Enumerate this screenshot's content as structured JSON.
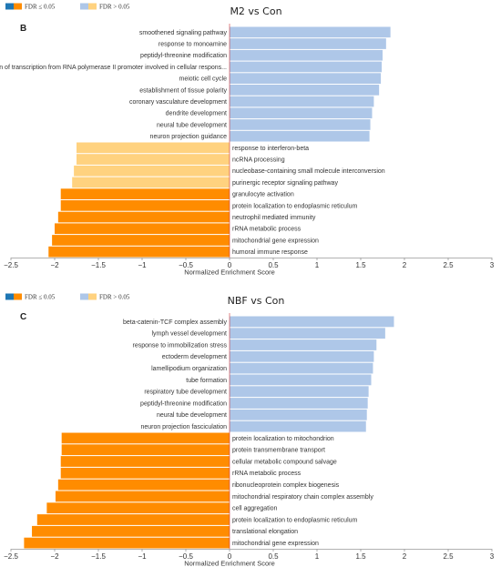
{
  "chart_data": [
    {
      "type": "bar",
      "orientation": "horizontal",
      "panel_letter": "B",
      "title": "M2 vs Con",
      "xlabel": "Normalized Enrichment Score",
      "xlim": [
        -2.5,
        3
      ],
      "xticks": [
        "−2.5",
        "−2",
        "−1.5",
        "−1",
        "−0.5",
        "0",
        "0.5",
        "1",
        "1.5",
        "2",
        "2.5",
        "3"
      ],
      "legend": [
        {
          "label": "FDR ≤ 0.05",
          "colors": [
            "#1f77b4",
            "#ff8c00"
          ]
        },
        {
          "label": "FDR > 0.05",
          "colors": [
            "#aec7e8",
            "#ffd27f"
          ]
        }
      ],
      "categories": [
        "smoothened signaling pathway",
        "response to monoamine",
        "peptidyl-threonine modification",
        "positive regulation of transcription from RNA polymerase II promoter involved in cellular respons...",
        "meiotic cell cycle",
        "establishment of tissue polarity",
        "coronary vasculature development",
        "dendrite development",
        "neural tube development",
        "neuron projection guidance",
        "response to interferon-beta",
        "ncRNA processing",
        "nucleobase-containing small molecule interconversion",
        "purinergic receptor signaling pathway",
        "granulocyte activation",
        "protein localization to endoplasmic reticulum",
        "neutrophil mediated immunity",
        "rRNA metabolic process",
        "mitochondrial gene expression",
        "humoral immune response"
      ],
      "values": [
        1.84,
        1.79,
        1.75,
        1.74,
        1.73,
        1.71,
        1.65,
        1.63,
        1.61,
        1.6,
        -1.75,
        -1.75,
        -1.78,
        -1.8,
        -1.93,
        -1.93,
        -1.96,
        -2.0,
        -2.03,
        -2.07
      ],
      "significant": [
        false,
        false,
        false,
        false,
        false,
        false,
        false,
        false,
        false,
        false,
        false,
        false,
        false,
        false,
        true,
        true,
        true,
        true,
        true,
        true
      ]
    },
    {
      "type": "bar",
      "orientation": "horizontal",
      "panel_letter": "C",
      "title": "NBF vs Con",
      "xlabel": "Normalized Enrichment Score",
      "xlim": [
        -2.5,
        3
      ],
      "xticks": [
        "−2.5",
        "−2",
        "−1.5",
        "−1",
        "−0.5",
        "0",
        "0.5",
        "1",
        "1.5",
        "2",
        "2.5",
        "3"
      ],
      "legend": [
        {
          "label": "FDR ≤ 0.05",
          "colors": [
            "#1f77b4",
            "#ff8c00"
          ]
        },
        {
          "label": "FDR > 0.05",
          "colors": [
            "#aec7e8",
            "#ffd27f"
          ]
        }
      ],
      "categories": [
        "beta-catenin-TCF complex assembly",
        "lymph vessel development",
        "response to immobilization stress",
        "ectoderm development",
        "lamellipodium organization",
        "tube formation",
        "respiratory tube development",
        "peptidyl-threonine modification",
        "neural tube development",
        "neuron projection fasciculation",
        "protein localization to mitochondrion",
        "protein transmembrane transport",
        "cellular metabolic compound salvage",
        "rRNA metabolic process",
        "ribonucleoprotein complex biogenesis",
        "mitochondrial respiratory chain complex assembly",
        "cell aggregation",
        "protein localization to endoplasmic reticulum",
        "translational elongation",
        "mitochondrial gene expression"
      ],
      "values": [
        1.88,
        1.78,
        1.68,
        1.65,
        1.64,
        1.62,
        1.59,
        1.58,
        1.57,
        1.56,
        -1.92,
        -1.92,
        -1.93,
        -1.93,
        -1.96,
        -1.99,
        -2.09,
        -2.2,
        -2.26,
        -2.35
      ],
      "significant": [
        false,
        false,
        false,
        false,
        false,
        false,
        false,
        false,
        false,
        false,
        true,
        true,
        true,
        true,
        true,
        true,
        true,
        true,
        true,
        true
      ]
    }
  ],
  "colors": {
    "pos_sig": "#1f77b4",
    "pos_nonsig": "#aec7e8",
    "neg_sig": "#ff8c00",
    "neg_nonsig": "#ffd27f",
    "axis": "#999999"
  }
}
